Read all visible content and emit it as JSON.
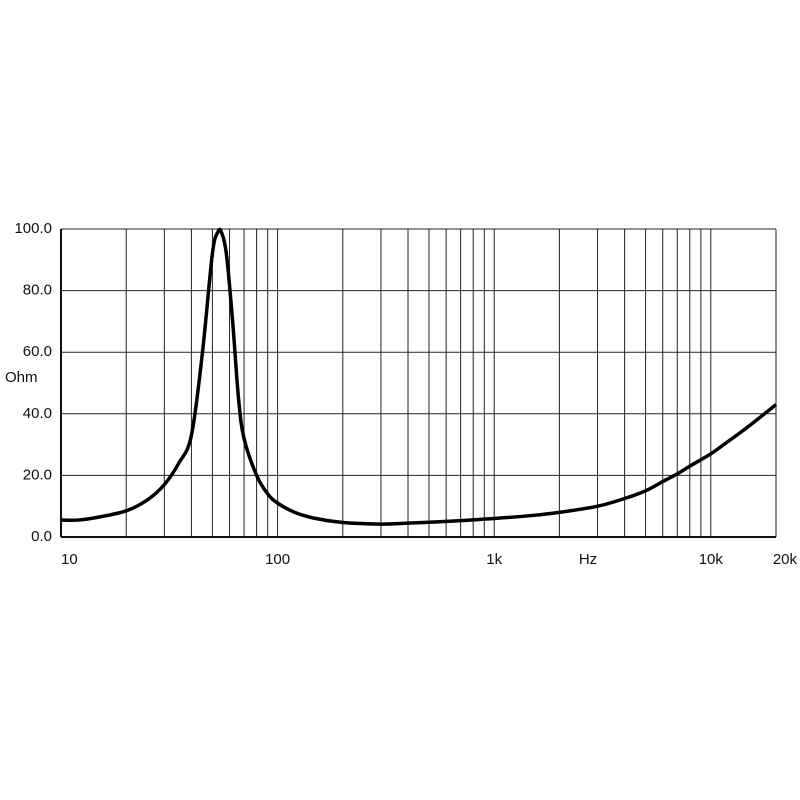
{
  "chart_data": {
    "type": "line",
    "x_label": "Hz",
    "y_label": "Ohm",
    "xscale": "log",
    "xlim": [
      10,
      20000
    ],
    "ylim": [
      0,
      100
    ],
    "xticks": [
      {
        "value": 10,
        "label": "10"
      },
      {
        "value": 100,
        "label": "100"
      },
      {
        "value": 1000,
        "label": "1k"
      },
      {
        "value": 10000,
        "label": "10k"
      },
      {
        "value": 20000,
        "label": "20k"
      }
    ],
    "xminor": [
      20,
      30,
      40,
      50,
      60,
      70,
      80,
      90,
      200,
      300,
      400,
      500,
      600,
      700,
      800,
      900,
      2000,
      3000,
      4000,
      5000,
      6000,
      7000,
      8000,
      9000
    ],
    "yticks": [
      {
        "value": 0,
        "label": "0.0"
      },
      {
        "value": 20,
        "label": "20.0"
      },
      {
        "value": 40,
        "label": "40.0"
      },
      {
        "value": 60,
        "label": "60.0"
      },
      {
        "value": 80,
        "label": "80.0"
      },
      {
        "value": 100,
        "label": "100.0"
      }
    ],
    "grid": true,
    "color": "#000000",
    "x": [
      10,
      12,
      15,
      20,
      25,
      30,
      35,
      40,
      45,
      50,
      53,
      55,
      58,
      62,
      66,
      70,
      80,
      90,
      100,
      120,
      150,
      200,
      300,
      400,
      500,
      700,
      1000,
      1500,
      2000,
      3000,
      4000,
      5000,
      6000,
      7000,
      8000,
      10000,
      12000,
      15000,
      20000
    ],
    "values": [
      5.5,
      5.5,
      6.5,
      8.5,
      12,
      17,
      24,
      33,
      60,
      92,
      99,
      99,
      92,
      70,
      45,
      32,
      20,
      14,
      11,
      8,
      6,
      4.7,
      4.2,
      4.5,
      4.8,
      5.3,
      6,
      7,
      8,
      10,
      12.5,
      15,
      18,
      20.5,
      23,
      27,
      31,
      36,
      43
    ]
  }
}
